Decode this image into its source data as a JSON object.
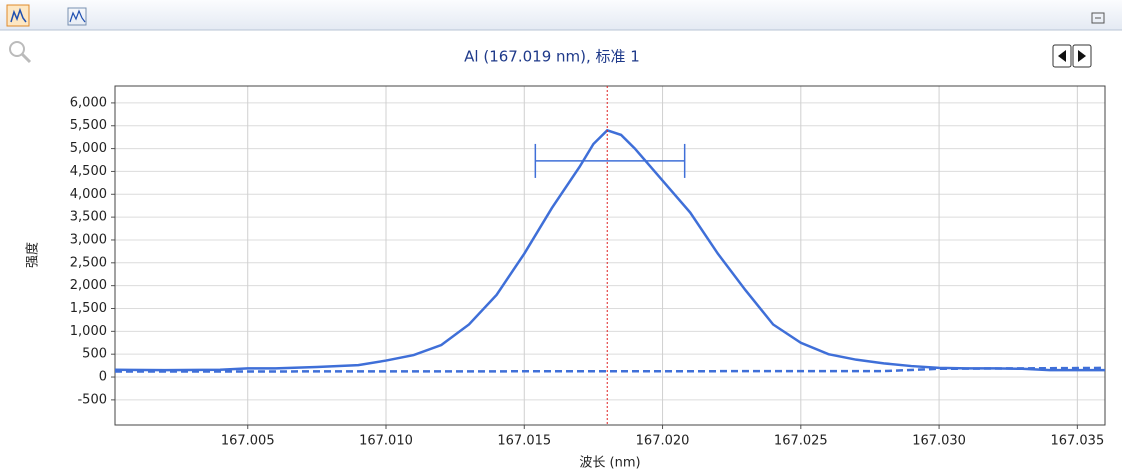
{
  "chart_data": {
    "type": "line",
    "title": "Al (167.019 nm), 标准 1",
    "x_label": "波长 (nm)",
    "y_label": "强度",
    "xlim": [
      167.0002,
      167.036
    ],
    "ylim": [
      -1050,
      6370
    ],
    "xticks": [
      {
        "value": 167.005,
        "label": "167.005"
      },
      {
        "value": 167.01,
        "label": "167.010"
      },
      {
        "value": 167.015,
        "label": "167.015"
      },
      {
        "value": 167.02,
        "label": "167.020"
      },
      {
        "value": 167.025,
        "label": "167.025"
      },
      {
        "value": 167.03,
        "label": "167.030"
      },
      {
        "value": 167.035,
        "label": "167.035"
      }
    ],
    "yticks": [
      {
        "value": -500,
        "label": "-500"
      },
      0,
      500,
      {
        "value": 1000,
        "label": "1,000"
      },
      {
        "value": 1500,
        "label": "1,500"
      },
      {
        "value": 2000,
        "label": "2,000"
      },
      {
        "value": 2500,
        "label": "2,500"
      },
      {
        "value": 3000,
        "label": "3,000"
      },
      {
        "value": 3500,
        "label": "3,500"
      },
      {
        "value": 4000,
        "label": "4,000"
      },
      {
        "value": 4500,
        "label": "4,500"
      },
      {
        "value": 5000,
        "label": "5,000"
      },
      {
        "value": 5500,
        "label": "5,500"
      },
      {
        "value": 6000,
        "label": "6,000"
      }
    ],
    "grid": true,
    "series": [
      {
        "color": "#3f6fd8",
        "style": "solid",
        "x": [
          167.0002,
          167.002,
          167.004,
          167.005,
          167.006,
          167.0075,
          167.009,
          167.01,
          167.011,
          167.012,
          167.013,
          167.014,
          167.015,
          167.016,
          167.017,
          167.0175,
          167.018,
          167.0185,
          167.019,
          167.02,
          167.021,
          167.022,
          167.023,
          167.024,
          167.025,
          167.026,
          167.027,
          167.028,
          167.029,
          167.03,
          167.031,
          167.032,
          167.033,
          167.034,
          167.036
        ],
        "values": [
          160,
          150,
          160,
          190,
          190,
          220,
          260,
          360,
          480,
          700,
          1150,
          1800,
          2700,
          3700,
          4600,
          5100,
          5400,
          5300,
          5000,
          4300,
          3600,
          2700,
          1900,
          1150,
          750,
          500,
          380,
          300,
          240,
          200,
          190,
          190,
          180,
          150,
          150
        ]
      },
      {
        "color": "#3f6fd8",
        "style": "dashed",
        "x": [
          167.0002,
          167.028,
          167.03,
          167.036
        ],
        "values": [
          120,
          130,
          180,
          200
        ]
      }
    ],
    "marker_x": {
      "value": 167.018,
      "color": "#e02020"
    },
    "bracket": {
      "y": 4730,
      "x": [
        167.0154,
        167.0208
      ],
      "color": "#3f6fd8"
    }
  }
}
